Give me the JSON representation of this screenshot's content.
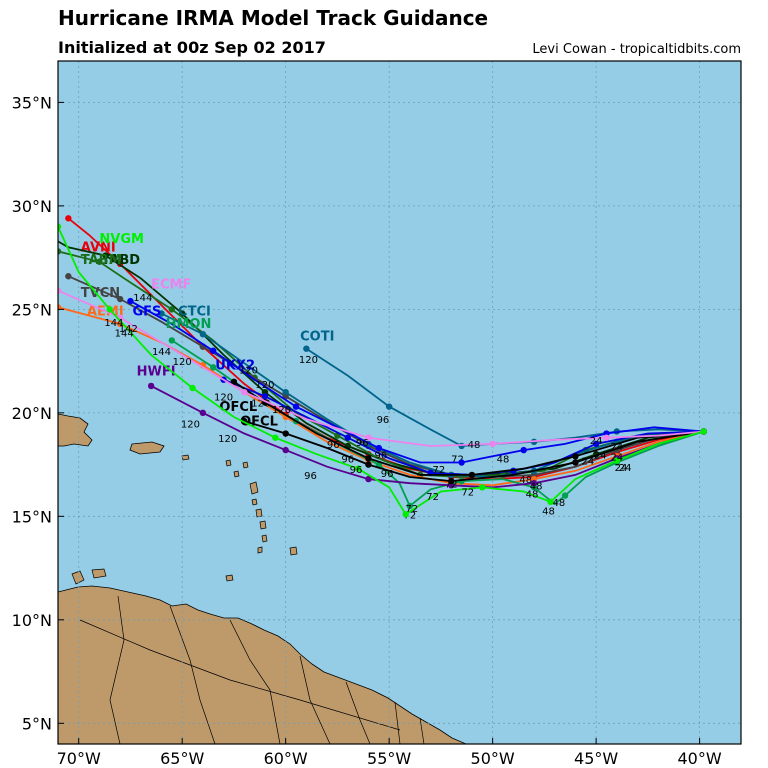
{
  "header": {
    "title": "Hurricane IRMA Model Track Guidance",
    "subtitle": "Initialized at 00z Sep 02 2017",
    "credit": "Levi Cowan - tropicaltidbits.com"
  },
  "map": {
    "lon_range": [
      -71,
      -38
    ],
    "lat_range": [
      4,
      37
    ],
    "ocean_color": "#95CDE6",
    "land_color": "#BE9A6B",
    "grid_color": "#6f9fb5",
    "lon_ticks": [
      {
        "value": -70,
        "label": "70°W"
      },
      {
        "value": -65,
        "label": "65°W"
      },
      {
        "value": -60,
        "label": "60°W"
      },
      {
        "value": -55,
        "label": "55°W"
      },
      {
        "value": -50,
        "label": "50°W"
      },
      {
        "value": -45,
        "label": "45°W"
      },
      {
        "value": -40,
        "label": "40°W"
      }
    ],
    "lat_ticks": [
      {
        "value": 5,
        "label": "5°N"
      },
      {
        "value": 10,
        "label": "10°N"
      },
      {
        "value": 15,
        "label": "15°N"
      },
      {
        "value": 20,
        "label": "20°N"
      },
      {
        "value": 25,
        "label": "25°N"
      },
      {
        "value": 30,
        "label": "30°N"
      },
      {
        "value": 35,
        "label": "35°N"
      }
    ]
  },
  "tracks": [
    {
      "name": "AVNI",
      "color": "#e8000b",
      "label_pos": [
        -69.9,
        27.8
      ],
      "points": [
        [
          -39.8,
          19.1
        ],
        [
          -42,
          18.7
        ],
        [
          -44,
          18.1
        ],
        [
          -46,
          17.4
        ],
        [
          -48,
          16.9
        ],
        [
          -50,
          16.8
        ],
        [
          -52,
          16.9
        ],
        [
          -54,
          17.3
        ],
        [
          -56,
          18.0
        ],
        [
          -58,
          18.8
        ],
        [
          -60,
          19.9
        ],
        [
          -62,
          21.4
        ],
        [
          -64,
          23.2
        ],
        [
          -66,
          25.2
        ],
        [
          -68,
          27.2
        ],
        [
          -69.5,
          28.6
        ],
        [
          -70.5,
          29.4
        ]
      ],
      "hour_labels": []
    },
    {
      "name": "TABD",
      "color": "#003300",
      "label_pos": [
        -68.9,
        27.2
      ],
      "points": [
        [
          -39.8,
          19.1
        ],
        [
          -42.5,
          18.8
        ],
        [
          -45,
          18.0
        ],
        [
          -47,
          17.3
        ],
        [
          -49,
          17.1
        ],
        [
          -51,
          17.0
        ],
        [
          -53,
          17.1
        ],
        [
          -55,
          17.6
        ],
        [
          -57,
          18.4
        ],
        [
          -59,
          19.5
        ],
        [
          -61,
          21.0
        ],
        [
          -63,
          22.8
        ],
        [
          -65,
          24.8
        ],
        [
          -67,
          26.5
        ],
        [
          -68.7,
          27.6
        ],
        [
          -70.5,
          28.0
        ],
        [
          -71.2,
          28.4
        ]
      ],
      "hour_labels": []
    },
    {
      "name": "TABM",
      "color": "#1a6e1a",
      "label_pos": [
        -69.9,
        27.2
      ],
      "points": [
        [
          -39.8,
          19.1
        ],
        [
          -43,
          18.9
        ],
        [
          -45.5,
          18.2
        ],
        [
          -47.5,
          17.2
        ],
        [
          -49.5,
          17.0
        ],
        [
          -51.5,
          16.9
        ],
        [
          -53.5,
          17.0
        ],
        [
          -55.5,
          17.8
        ],
        [
          -57.5,
          18.9
        ],
        [
          -59.5,
          20.0
        ],
        [
          -61.5,
          21.7
        ],
        [
          -63.5,
          23.5
        ],
        [
          -65.5,
          25.0
        ],
        [
          -67.5,
          26.3
        ],
        [
          -69,
          27.3
        ],
        [
          -71,
          27.8
        ]
      ],
      "hour_labels": []
    },
    {
      "name": "TVCN",
      "color": "#444444",
      "label_pos": [
        -69.9,
        25.6
      ],
      "points": [
        [
          -39.8,
          19.1
        ],
        [
          -42,
          18.8
        ],
        [
          -44,
          18.2
        ],
        [
          -46,
          17.4
        ],
        [
          -48,
          17.0
        ],
        [
          -50,
          16.9
        ],
        [
          -52,
          17.0
        ],
        [
          -54,
          17.5
        ],
        [
          -56,
          18.4
        ],
        [
          -58,
          19.6
        ],
        [
          -60,
          20.8
        ],
        [
          -62,
          22.0
        ],
        [
          -64,
          23.2
        ],
        [
          -66,
          24.4
        ],
        [
          -68,
          25.5
        ],
        [
          -70.5,
          26.6
        ]
      ],
      "hour_labels": []
    },
    {
      "name": "AEMI",
      "color": "#ff6a1a",
      "label_pos": [
        -69.6,
        24.7
      ],
      "points": [
        [
          -39.8,
          19.1
        ],
        [
          -42,
          18.6
        ],
        [
          -44,
          17.9
        ],
        [
          -46,
          17.2
        ],
        [
          -48,
          16.8
        ],
        [
          -50,
          16.5
        ],
        [
          -52,
          16.6
        ],
        [
          -54,
          17.0
        ],
        [
          -56,
          17.7
        ],
        [
          -58,
          18.6
        ],
        [
          -60,
          19.8
        ],
        [
          -62,
          21.0
        ],
        [
          -64,
          22.3
        ],
        [
          -66,
          23.4
        ],
        [
          -68,
          24.3
        ],
        [
          -71,
          25.1
        ]
      ],
      "hour_labels": []
    },
    {
      "name": "CTCI",
      "color": "#006688",
      "label_pos": [
        -65.2,
        24.7
      ],
      "points": [
        [
          -39.8,
          19.1
        ],
        [
          -42,
          19.0
        ],
        [
          -44,
          18.6
        ],
        [
          -46,
          18.0
        ],
        [
          -48,
          17.2
        ],
        [
          -50,
          16.9
        ],
        [
          -52,
          17.0
        ],
        [
          -54,
          17.6
        ],
        [
          -56,
          18.5
        ],
        [
          -58,
          19.7
        ],
        [
          -60,
          21.0
        ],
        [
          -62,
          22.4
        ],
        [
          -64,
          23.8
        ],
        [
          -66,
          24.8
        ]
      ],
      "hour_labels": []
    },
    {
      "name": "COTI",
      "color": "#00648c",
      "label_pos": [
        -59.3,
        23.5
      ],
      "points": [
        [
          -39.8,
          19.1
        ],
        [
          -42,
          19.2
        ],
        [
          -44,
          19.1
        ],
        [
          -46,
          18.8
        ],
        [
          -48,
          18.6
        ],
        [
          -50,
          18.5
        ],
        [
          -51.5,
          18.4
        ],
        [
          -53,
          19.2
        ],
        [
          -55,
          20.3
        ],
        [
          -57,
          21.8
        ],
        [
          -59,
          23.1
        ]
      ],
      "hour_labels": [
        {
          "text": "120",
          "pos": [
            -58.9,
            22.4
          ]
        },
        {
          "text": "96",
          "pos": [
            -55.3,
            19.5
          ]
        },
        {
          "text": "72",
          "pos": [
            -51.7,
            17.6
          ]
        }
      ]
    },
    {
      "name": "GFS",
      "color": "#0000ee",
      "label_pos": [
        -67.4,
        24.7
      ],
      "points": [
        [
          -39.8,
          19.1
        ],
        [
          -42.2,
          19.3
        ],
        [
          -44.5,
          19.0
        ],
        [
          -46.5,
          18.5
        ],
        [
          -48.5,
          18.2
        ],
        [
          -50,
          17.9
        ],
        [
          -51.5,
          17.6
        ],
        [
          -53.5,
          17.6
        ],
        [
          -55.5,
          18.3
        ],
        [
          -57.5,
          19.3
        ],
        [
          -59.5,
          20.3
        ],
        [
          -61.5,
          21.6
        ],
        [
          -63.5,
          23.0
        ],
        [
          -65.5,
          24.3
        ],
        [
          -67.5,
          25.4
        ]
      ],
      "hour_labels": [
        {
          "text": "48",
          "pos": [
            -49.5,
            17.6
          ]
        }
      ]
    },
    {
      "name": "HMON",
      "color": "#00a050",
      "label_pos": [
        -65.8,
        24.1
      ],
      "points": [
        [
          -39.8,
          19.1
        ],
        [
          -42,
          18.4
        ],
        [
          -44,
          17.6
        ],
        [
          -45.5,
          16.9
        ],
        [
          -46.5,
          16.0
        ],
        [
          -47,
          15.6
        ],
        [
          -48,
          16.4
        ],
        [
          -49.5,
          16.8
        ],
        [
          -51.5,
          16.7
        ],
        [
          -53,
          16.3
        ],
        [
          -54,
          15.5
        ],
        [
          -54.5,
          16.6
        ],
        [
          -55.5,
          17.5
        ],
        [
          -57.5,
          18.5
        ],
        [
          -59.5,
          19.6
        ],
        [
          -61.5,
          20.8
        ],
        [
          -63.5,
          22.2
        ],
        [
          -65.5,
          23.5
        ]
      ],
      "hour_labels": [
        {
          "text": "48",
          "pos": [
            -47.3,
            15.1
          ]
        },
        {
          "text": "72",
          "pos": [
            -54.0,
            14.9
          ]
        }
      ]
    },
    {
      "name": "UKX2",
      "color": "#0000dd",
      "label_pos": [
        -63.4,
        22.1
      ],
      "points": [
        [
          -39.8,
          19.1
        ],
        [
          -42.5,
          19.0
        ],
        [
          -45,
          18.5
        ],
        [
          -47,
          17.6
        ],
        [
          -49,
          17.2
        ],
        [
          -51,
          17.0
        ],
        [
          -53,
          17.1
        ],
        [
          -55,
          17.8
        ],
        [
          -57,
          18.8
        ],
        [
          -59,
          19.8
        ],
        [
          -61,
          20.8
        ],
        [
          -63,
          21.6
        ]
      ],
      "hour_labels": []
    },
    {
      "name": "HWFI",
      "color": "#5a0090",
      "label_pos": [
        -67.2,
        21.8
      ],
      "points": [
        [
          -39.8,
          19.1
        ],
        [
          -42,
          18.5
        ],
        [
          -44,
          17.8
        ],
        [
          -46,
          17.0
        ],
        [
          -48,
          16.6
        ],
        [
          -50,
          16.4
        ],
        [
          -52,
          16.5
        ],
        [
          -54,
          16.6
        ],
        [
          -56,
          16.8
        ],
        [
          -58,
          17.4
        ],
        [
          -60,
          18.2
        ],
        [
          -62,
          19.0
        ],
        [
          -64,
          20.0
        ],
        [
          -66.5,
          21.3
        ]
      ],
      "hour_labels": [
        {
          "text": "120",
          "pos": [
            -64.6,
            19.3
          ]
        },
        {
          "text": "96",
          "pos": [
            -58.8,
            16.8
          ]
        }
      ]
    },
    {
      "name": "OFCL",
      "color": "#000000",
      "label_pos": [
        -63.2,
        20.1
      ],
      "points": [
        [
          -39.8,
          19.1
        ],
        [
          -43,
          18.8
        ],
        [
          -46,
          17.9
        ],
        [
          -48.5,
          17.3
        ],
        [
          -51,
          17.0
        ],
        [
          -53.5,
          17.0
        ],
        [
          -56,
          17.8
        ],
        [
          -58.5,
          19.0
        ],
        [
          -61,
          20.5
        ],
        [
          -62.5,
          21.5
        ]
      ],
      "hour_labels": [
        {
          "text": "120",
          "pos": [
            -63.0,
            20.6
          ]
        },
        {
          "text": "120",
          "pos": [
            -61.2,
            20.3
          ]
        }
      ]
    },
    {
      "name": "OFCL",
      "color": "#000000",
      "label_pos": [
        -62.2,
        19.4
      ],
      "points": [
        [
          -39.8,
          19.1
        ],
        [
          -43,
          18.6
        ],
        [
          -46,
          17.6
        ],
        [
          -49,
          17.0
        ],
        [
          -52,
          16.7
        ],
        [
          -54,
          16.9
        ],
        [
          -56,
          17.5
        ],
        [
          -58,
          18.3
        ],
        [
          -60,
          19.0
        ],
        [
          -62,
          19.6
        ]
      ],
      "hour_labels": [
        {
          "text": "120",
          "pos": [
            -62.8,
            18.6
          ]
        },
        {
          "text": "96",
          "pos": [
            -57.0,
            17.6
          ]
        }
      ]
    },
    {
      "name": "ECMF",
      "color": "#ee82ee",
      "label_pos": [
        -66.5,
        26.0
      ],
      "points": [
        [
          -39.8,
          19.1
        ],
        [
          -42,
          18.9
        ],
        [
          -44.5,
          18.8
        ],
        [
          -47,
          18.7
        ],
        [
          -50,
          18.5
        ],
        [
          -53,
          18.4
        ],
        [
          -56,
          18.8
        ],
        [
          -59,
          19.7
        ],
        [
          -62,
          21.0
        ],
        [
          -65,
          22.8
        ],
        [
          -68,
          24.6
        ],
        [
          -71,
          25.9
        ]
      ],
      "hour_labels": []
    },
    {
      "name": "NVGM",
      "color": "#00ee00",
      "label_pos": [
        -69.0,
        28.2
      ],
      "points": [
        [
          -39.8,
          19.1
        ],
        [
          -42,
          18.5
        ],
        [
          -44,
          17.7
        ],
        [
          -46,
          16.8
        ],
        [
          -47.2,
          15.7
        ],
        [
          -48.5,
          16.2
        ],
        [
          -50.5,
          16.4
        ],
        [
          -52.5,
          16.2
        ],
        [
          -54.2,
          15.1
        ],
        [
          -55,
          16.4
        ],
        [
          -56.5,
          17.3
        ],
        [
          -58.5,
          18.0
        ],
        [
          -60.5,
          18.8
        ],
        [
          -62.5,
          19.8
        ],
        [
          -64.5,
          21.2
        ],
        [
          -66.5,
          22.8
        ],
        [
          -68.5,
          25.0
        ],
        [
          -70,
          26.8
        ],
        [
          -71,
          29.0
        ]
      ],
      "hour_labels": [
        {
          "text": "24",
          "pos": [
            -43.6,
            17.2
          ]
        }
      ]
    }
  ],
  "extra_labels": [
    {
      "text": "144",
      "pos": [
        -66.9,
        25.4
      ]
    },
    {
      "text": "144",
      "pos": [
        -68.3,
        24.2
      ]
    },
    {
      "text": "144",
      "pos": [
        -67.8,
        23.7
      ]
    },
    {
      "text": "142",
      "pos": [
        -67.6,
        23.9
      ]
    },
    {
      "text": "144",
      "pos": [
        -66.0,
        22.8
      ]
    },
    {
      "text": "120",
      "pos": [
        -65.0,
        22.3
      ]
    },
    {
      "text": "120",
      "pos": [
        -61.8,
        21.9
      ]
    },
    {
      "text": "120",
      "pos": [
        -61.0,
        21.2
      ]
    },
    {
      "text": "120",
      "pos": [
        -60.2,
        20.0
      ]
    },
    {
      "text": "96",
      "pos": [
        -57.7,
        18.3
      ]
    },
    {
      "text": "96",
      "pos": [
        -56.3,
        18.4
      ]
    },
    {
      "text": "96",
      "pos": [
        -55.4,
        17.8
      ]
    },
    {
      "text": "96",
      "pos": [
        -56.6,
        17.1
      ]
    },
    {
      "text": "96",
      "pos": [
        -55.1,
        16.9
      ]
    },
    {
      "text": "72",
      "pos": [
        -52.6,
        17.1
      ]
    },
    {
      "text": "72",
      "pos": [
        -52.0,
        16.4
      ]
    },
    {
      "text": "72",
      "pos": [
        -51.2,
        16.0
      ]
    },
    {
      "text": "72",
      "pos": [
        -52.9,
        15.8
      ]
    },
    {
      "text": "72",
      "pos": [
        -53.9,
        15.2
      ]
    },
    {
      "text": "48",
      "pos": [
        -50.9,
        18.3
      ]
    },
    {
      "text": "48",
      "pos": [
        -48.4,
        16.6
      ]
    },
    {
      "text": "48",
      "pos": [
        -47.9,
        16.3
      ]
    },
    {
      "text": "48",
      "pos": [
        -48.1,
        15.9
      ]
    },
    {
      "text": "48",
      "pos": [
        -46.8,
        15.5
      ]
    },
    {
      "text": "24",
      "pos": [
        -45.4,
        17.5
      ]
    },
    {
      "text": "24",
      "pos": [
        -44.8,
        17.8
      ]
    },
    {
      "text": "24",
      "pos": [
        -44.0,
        18.2
      ]
    },
    {
      "text": "24",
      "pos": [
        -44.0,
        17.7
      ]
    },
    {
      "text": "24",
      "pos": [
        -43.8,
        17.2
      ]
    },
    {
      "text": "24",
      "pos": [
        -45.0,
        18.5
      ]
    }
  ]
}
